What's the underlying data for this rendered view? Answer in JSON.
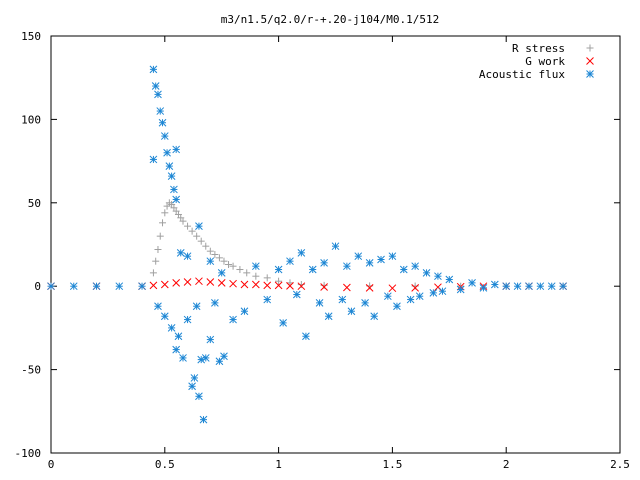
{
  "chart_data": {
    "type": "scatter",
    "title": "m3/n1.5/q2.0/r-+.20-j104/M0.1/512",
    "xlim": [
      0,
      2.5
    ],
    "ylim": [
      -100,
      150
    ],
    "x_ticks": [
      "0",
      "0.5",
      "1",
      "1.5",
      "2",
      "2.5"
    ],
    "y_ticks": [
      "-100",
      "-50",
      "0",
      "50",
      "100",
      "150"
    ],
    "grid": false,
    "legend_position": "top-right",
    "series": [
      {
        "name": "R stress",
        "marker": "plus",
        "color": "#a0a0a0",
        "points": [
          [
            0.45,
            8
          ],
          [
            0.46,
            15
          ],
          [
            0.47,
            22
          ],
          [
            0.48,
            30
          ],
          [
            0.49,
            38
          ],
          [
            0.5,
            44
          ],
          [
            0.51,
            48
          ],
          [
            0.52,
            50
          ],
          [
            0.53,
            49
          ],
          [
            0.54,
            47
          ],
          [
            0.55,
            45
          ],
          [
            0.56,
            43
          ],
          [
            0.57,
            41
          ],
          [
            0.58,
            39
          ],
          [
            0.6,
            36
          ],
          [
            0.62,
            33
          ],
          [
            0.64,
            30
          ],
          [
            0.66,
            27
          ],
          [
            0.68,
            24
          ],
          [
            0.7,
            21
          ],
          [
            0.72,
            19
          ],
          [
            0.74,
            17
          ],
          [
            0.76,
            15
          ],
          [
            0.78,
            13
          ],
          [
            0.8,
            12
          ],
          [
            0.83,
            10
          ],
          [
            0.86,
            8
          ],
          [
            0.9,
            6
          ],
          [
            0.95,
            5
          ],
          [
            1.0,
            3
          ],
          [
            1.05,
            2
          ],
          [
            1.1,
            1
          ],
          [
            1.2,
            0.5
          ],
          [
            1.4,
            0.2
          ],
          [
            1.6,
            0.1
          ],
          [
            1.8,
            0
          ],
          [
            2.0,
            0
          ],
          [
            2.25,
            0
          ]
        ]
      },
      {
        "name": "G work",
        "marker": "cross",
        "color": "#ff0000",
        "points": [
          [
            0.0,
            0
          ],
          [
            0.2,
            0
          ],
          [
            0.4,
            0
          ],
          [
            0.45,
            0.5
          ],
          [
            0.5,
            1
          ],
          [
            0.55,
            2
          ],
          [
            0.6,
            2.5
          ],
          [
            0.65,
            3
          ],
          [
            0.7,
            2.5
          ],
          [
            0.75,
            2
          ],
          [
            0.8,
            1.5
          ],
          [
            0.85,
            1
          ],
          [
            0.9,
            1
          ],
          [
            0.95,
            0.5
          ],
          [
            1.0,
            0.5
          ],
          [
            1.05,
            0.2
          ],
          [
            1.1,
            0
          ],
          [
            1.2,
            -0.5
          ],
          [
            1.3,
            -0.8
          ],
          [
            1.4,
            -1
          ],
          [
            1.5,
            -1.2
          ],
          [
            1.6,
            -1
          ],
          [
            1.7,
            -0.6
          ],
          [
            1.8,
            -0.3
          ],
          [
            1.9,
            0
          ],
          [
            2.0,
            0
          ],
          [
            2.1,
            0
          ],
          [
            2.25,
            0
          ]
        ]
      },
      {
        "name": "Acoustic flux",
        "marker": "star",
        "color": "#1c86d4",
        "points": [
          [
            0.45,
            130
          ],
          [
            0.46,
            120
          ],
          [
            0.47,
            115
          ],
          [
            0.48,
            105
          ],
          [
            0.49,
            98
          ],
          [
            0.5,
            90
          ],
          [
            0.51,
            80
          ],
          [
            0.52,
            72
          ],
          [
            0.53,
            66
          ],
          [
            0.54,
            58
          ],
          [
            0.55,
            52
          ],
          [
            0.45,
            76
          ],
          [
            0.47,
            -12
          ],
          [
            0.5,
            -18
          ],
          [
            0.53,
            -25
          ],
          [
            0.55,
            -38
          ],
          [
            0.56,
            -30
          ],
          [
            0.58,
            -43
          ],
          [
            0.6,
            -20
          ],
          [
            0.62,
            -60
          ],
          [
            0.63,
            -55
          ],
          [
            0.64,
            -12
          ],
          [
            0.65,
            -66
          ],
          [
            0.66,
            -44
          ],
          [
            0.67,
            -80
          ],
          [
            0.68,
            -43
          ],
          [
            0.7,
            -32
          ],
          [
            0.72,
            -10
          ],
          [
            0.74,
            -45
          ],
          [
            0.76,
            -42
          ],
          [
            0.55,
            82
          ],
          [
            0.57,
            20
          ],
          [
            0.6,
            18
          ],
          [
            0.65,
            36
          ],
          [
            0.7,
            15
          ],
          [
            0.75,
            8
          ],
          [
            0.8,
            -20
          ],
          [
            0.85,
            -15
          ],
          [
            0.9,
            12
          ],
          [
            0.95,
            -8
          ],
          [
            1.0,
            10
          ],
          [
            1.02,
            -22
          ],
          [
            1.05,
            15
          ],
          [
            1.08,
            -5
          ],
          [
            1.1,
            20
          ],
          [
            1.12,
            -30
          ],
          [
            1.15,
            10
          ],
          [
            1.18,
            -10
          ],
          [
            1.2,
            14
          ],
          [
            1.22,
            -18
          ],
          [
            1.25,
            24
          ],
          [
            1.28,
            -8
          ],
          [
            1.3,
            12
          ],
          [
            1.32,
            -15
          ],
          [
            1.35,
            18
          ],
          [
            1.38,
            -10
          ],
          [
            1.4,
            14
          ],
          [
            1.42,
            -18
          ],
          [
            1.45,
            16
          ],
          [
            1.48,
            -6
          ],
          [
            1.5,
            18
          ],
          [
            1.52,
            -12
          ],
          [
            1.55,
            10
          ],
          [
            1.58,
            -8
          ],
          [
            1.6,
            12
          ],
          [
            1.62,
            -6
          ],
          [
            1.65,
            8
          ],
          [
            1.68,
            -4
          ],
          [
            1.7,
            6
          ],
          [
            1.72,
            -3
          ],
          [
            1.75,
            4
          ],
          [
            1.8,
            -2
          ],
          [
            1.85,
            2
          ],
          [
            1.9,
            -1
          ],
          [
            1.95,
            1
          ],
          [
            2.0,
            0
          ],
          [
            2.05,
            0
          ],
          [
            2.1,
            0
          ],
          [
            2.15,
            0
          ],
          [
            2.2,
            0
          ],
          [
            2.25,
            0
          ],
          [
            0.0,
            0
          ],
          [
            0.1,
            0
          ],
          [
            0.2,
            0
          ],
          [
            0.3,
            0
          ],
          [
            0.4,
            0
          ]
        ]
      }
    ]
  }
}
